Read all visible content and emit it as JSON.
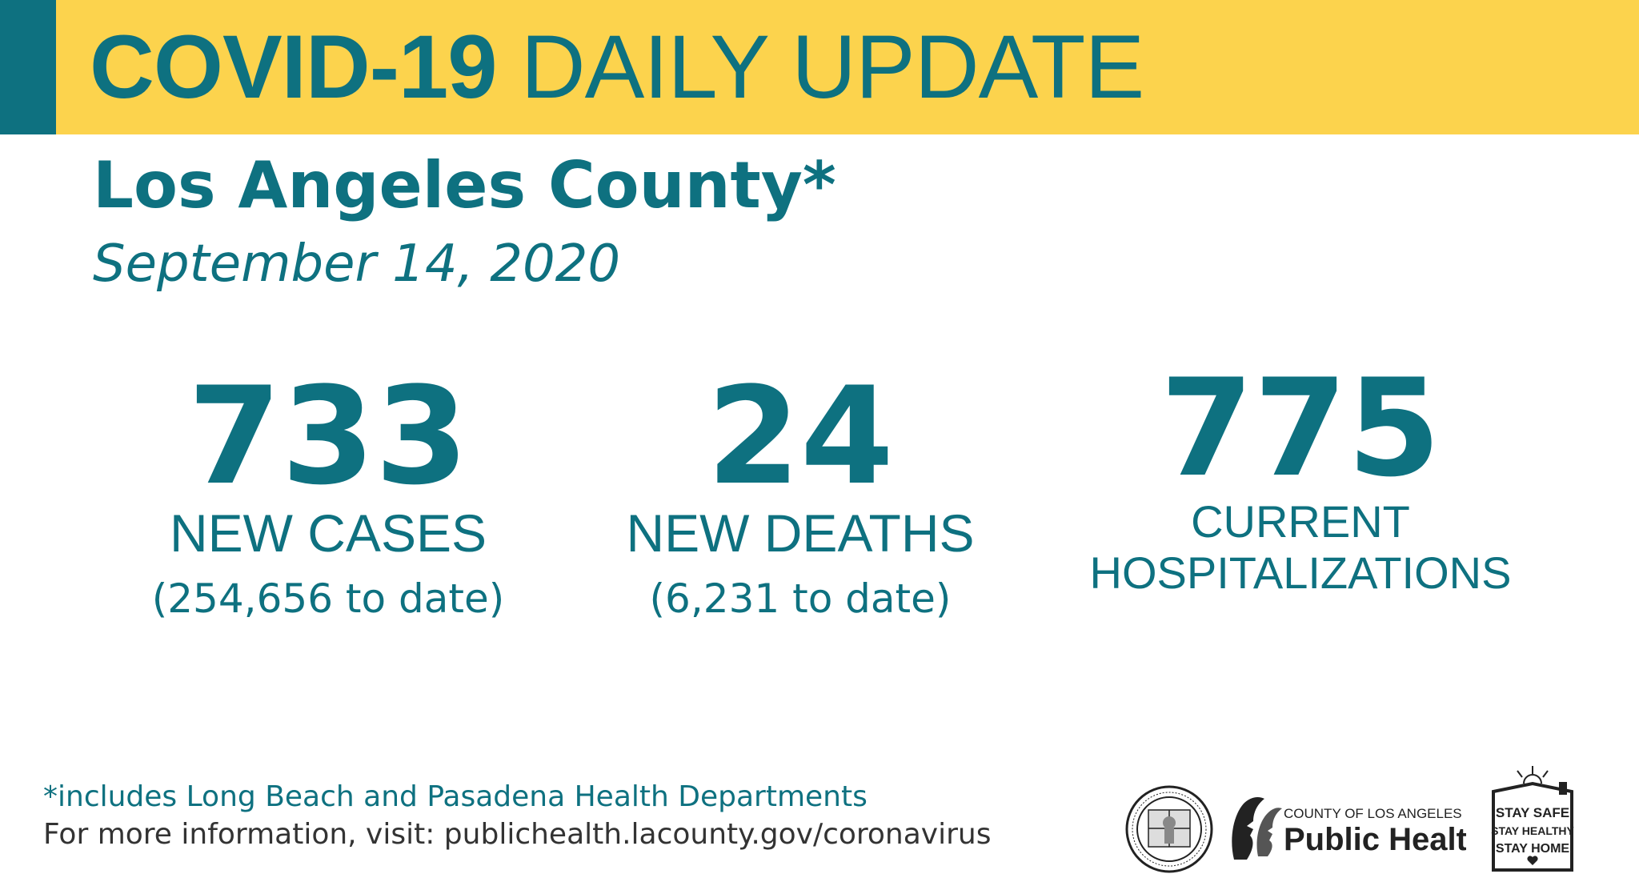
{
  "banner": {
    "title_bold": "COVID-19",
    "title_light": " DAILY UPDATE"
  },
  "header": {
    "county": "Los Angeles County*",
    "date": "September 14, 2020"
  },
  "stats": [
    {
      "value": "733",
      "label": "NEW CASES",
      "sub": "(254,656 to date)"
    },
    {
      "value": "24",
      "label": "NEW DEATHS",
      "sub": "(6,231 to date)"
    },
    {
      "value": "775",
      "label_line1": "CURRENT",
      "label_line2": "HOSPITALIZATIONS"
    }
  ],
  "footer": {
    "note": "*includes Long Beach and Pasadena Health Departments",
    "more_info": "For more information, visit: publichealth.lacounty.gov/coronavirus"
  },
  "logos": {
    "ph_small": "COUNTY OF LOS ANGELES",
    "ph_big": "Public Health",
    "stay_1": "STAY SAFE",
    "stay_2": "STAY HEALTHY",
    "stay_3": "STAY HOME"
  },
  "colors": {
    "teal": "#0e7180",
    "yellow": "#fcd34d"
  }
}
